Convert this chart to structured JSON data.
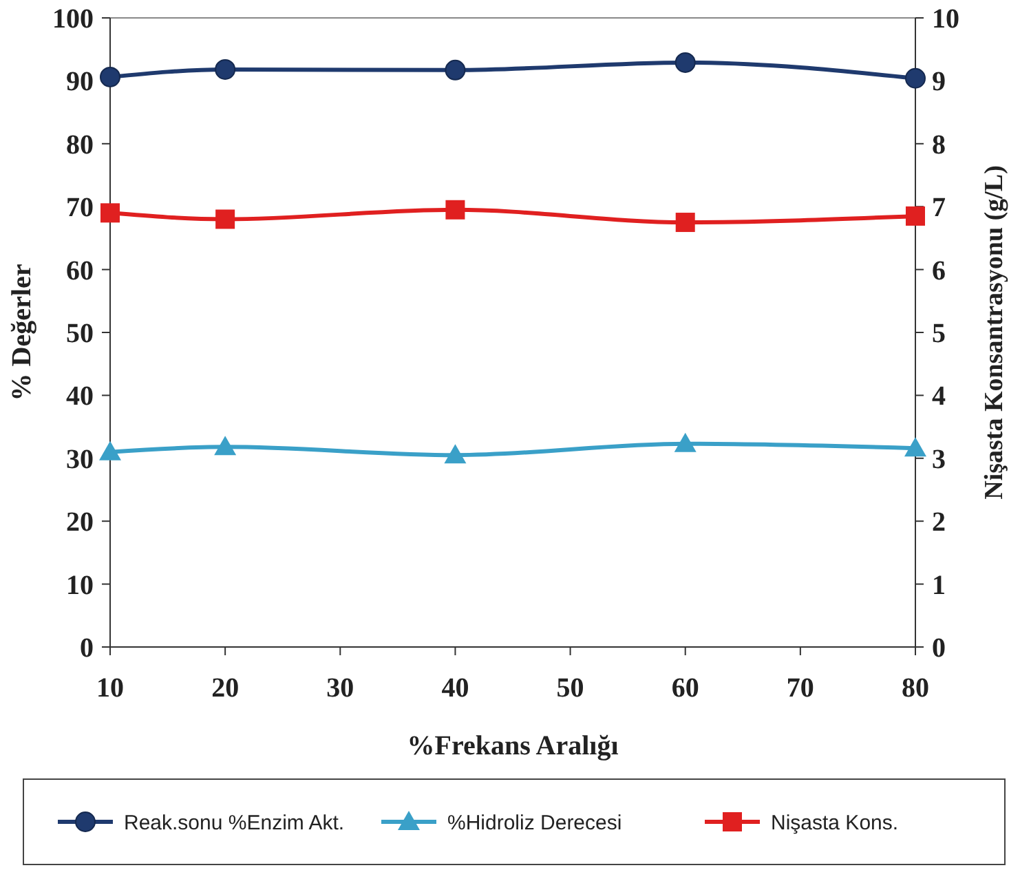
{
  "chart_data": {
    "type": "line",
    "xlabel": "%Frekans Aralığı",
    "ylabel": "% Değerler",
    "y2label": "Nişasta Konsantrasyonu (g/L)",
    "x": [
      10,
      20,
      40,
      60,
      80
    ],
    "xlim": [
      10,
      80
    ],
    "xticks": [
      10,
      20,
      30,
      40,
      50,
      60,
      70,
      80
    ],
    "ylim": [
      0,
      100
    ],
    "yticks": [
      0,
      10,
      20,
      30,
      40,
      50,
      60,
      70,
      80,
      90,
      100
    ],
    "y2lim": [
      0,
      10
    ],
    "y2ticks": [
      0,
      1,
      2,
      3,
      4,
      5,
      6,
      7,
      8,
      9,
      10
    ],
    "legend": "bottom",
    "grid": false,
    "series": [
      {
        "name": "Reak.sonu %Enzim Akt.",
        "color": "#1f3a6e",
        "marker": "circle",
        "values": [
          90.6,
          91.8,
          91.7,
          92.9,
          90.4
        ]
      },
      {
        "name": "%Hidroliz Derecesi",
        "color": "#3aa0c8",
        "marker": "triangle",
        "values": [
          31.0,
          31.8,
          30.5,
          32.3,
          31.6
        ]
      },
      {
        "name": "Nişasta Kons.",
        "color": "#e02020",
        "marker": "square",
        "axis": "y2",
        "values": [
          6.9,
          6.8,
          6.95,
          6.75,
          6.85
        ]
      }
    ]
  }
}
